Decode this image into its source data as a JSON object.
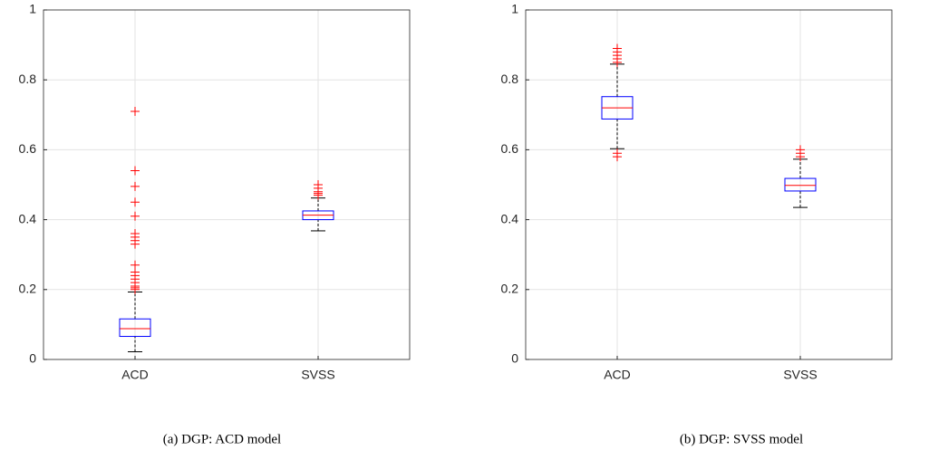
{
  "chart_data": [
    {
      "type": "box",
      "caption": "(a) DGP: ACD model",
      "categories": [
        "ACD",
        "SVSS"
      ],
      "stats": [
        {
          "low": 0.022,
          "q1": 0.066,
          "median": 0.088,
          "q3": 0.116,
          "high": 0.193,
          "outliers": [
            0.71,
            0.54,
            0.495,
            0.45,
            0.41,
            0.36,
            0.35,
            0.34,
            0.33,
            0.27,
            0.25,
            0.24,
            0.23,
            0.22,
            0.21,
            0.205,
            0.2
          ]
        },
        {
          "low": 0.368,
          "q1": 0.4,
          "median": 0.413,
          "q3": 0.425,
          "high": 0.462,
          "outliers": [
            0.47,
            0.475,
            0.48,
            0.49,
            0.5
          ]
        }
      ],
      "ylim": [
        0,
        1
      ],
      "yticks": [
        0,
        0.2,
        0.4,
        0.6,
        0.8,
        1
      ],
      "grid": true,
      "box_color": "#0000ff",
      "median_color": "#ff0000",
      "whisker_color": "#000000",
      "outlier_color": "#ff0000"
    },
    {
      "type": "box",
      "caption": "(b) DGP: SVSS model",
      "categories": [
        "ACD",
        "SVSS"
      ],
      "stats": [
        {
          "low": 0.603,
          "q1": 0.688,
          "median": 0.72,
          "q3": 0.752,
          "high": 0.845,
          "outliers": [
            0.85,
            0.86,
            0.87,
            0.88,
            0.89,
            0.59,
            0.58
          ]
        },
        {
          "low": 0.435,
          "q1": 0.482,
          "median": 0.498,
          "q3": 0.518,
          "high": 0.573,
          "outliers": [
            0.58,
            0.59,
            0.6
          ]
        }
      ],
      "ylim": [
        0,
        1
      ],
      "yticks": [
        0,
        0.2,
        0.4,
        0.6,
        0.8,
        1
      ],
      "grid": true,
      "box_color": "#0000ff",
      "median_color": "#ff0000",
      "whisker_color": "#000000",
      "outlier_color": "#ff0000"
    }
  ]
}
